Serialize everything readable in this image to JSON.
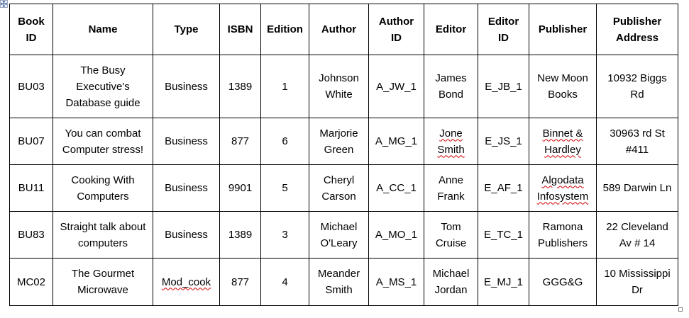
{
  "headers": {
    "book_id": "Book ID",
    "name": "Name",
    "type": "Type",
    "isbn": "ISBN",
    "edition": "Edition",
    "author": "Author",
    "author_id": "Author ID",
    "editor": "Editor",
    "editor_id": "Editor ID",
    "publisher": "Publisher",
    "publisher_address": "Publisher Address"
  },
  "rows": [
    {
      "book_id": "BU03",
      "name": "The Busy Executive's Database guide",
      "type": "Business",
      "isbn": "1389",
      "edition": "1",
      "author": "Johnson White",
      "author_id": "A_JW_1",
      "editor": "James Bond",
      "editor_id": "E_JB_1",
      "publisher": "New Moon Books",
      "publisher_address": "10932 Biggs Rd"
    },
    {
      "book_id": "BU07",
      "name": "You can combat Computer stress!",
      "type": "Business",
      "isbn": "877",
      "edition": "6",
      "author": "Marjorie Green",
      "author_id": "A_MG_1",
      "editor": "Jone Smith",
      "editor_id": "E_JS_1",
      "publisher": "Binnet & Hardley",
      "publisher_address": "30963 rd St #411"
    },
    {
      "book_id": "BU11",
      "name": "Cooking With Computers",
      "type": "Business",
      "isbn": "9901",
      "edition": "5",
      "author": "Cheryl Carson",
      "author_id": "A_CC_1",
      "editor": "Anne Frank",
      "editor_id": "E_AF_1",
      "publisher": "Algodata Infosystem",
      "publisher_address": "589 Darwin Ln"
    },
    {
      "book_id": "BU83",
      "name": "Straight talk about computers",
      "type": "Business",
      "isbn": "1389",
      "edition": "3",
      "author": "Michael O'Leary",
      "author_id": "A_MO_1",
      "editor": "Tom Cruise",
      "editor_id": "E_TC_1",
      "publisher": "Ramona Publishers",
      "publisher_address": "22 Cleveland Av # 14"
    },
    {
      "book_id": "MC02",
      "name": "The Gourmet Microwave",
      "type": "Mod_cook",
      "isbn": "877",
      "edition": "4",
      "author": "Meander Smith",
      "author_id": "A_MS_1",
      "editor": "Michael Jordan",
      "editor_id": "E_MJ_1",
      "publisher": "GGG&G",
      "publisher_address": "10 Mississippi Dr"
    }
  ]
}
